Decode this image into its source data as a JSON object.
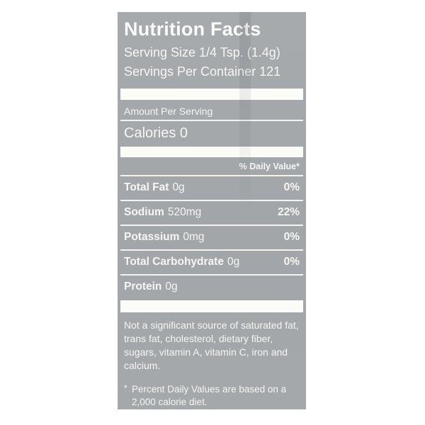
{
  "label": {
    "title": "Nutrition Facts",
    "serving_size": "Serving Size 1/4 Tsp. (1.4g)",
    "servings_per_container": "Servings Per Container 121",
    "amount_per_serving": "Amount Per Serving",
    "calories_line": "Calories 0",
    "daily_value_header": "% Daily Value*",
    "nutrients": [
      {
        "name": "Total Fat",
        "amount": "0g",
        "dv": "0%"
      },
      {
        "name": "Sodium",
        "amount": "520mg",
        "dv": "22%"
      },
      {
        "name": "Potassium",
        "amount": "0mg",
        "dv": "0%"
      },
      {
        "name": "Total Carbohydrate",
        "amount": "0g",
        "dv": "0%"
      },
      {
        "name": "Protein",
        "amount": "0g",
        "dv": ""
      }
    ],
    "disclaimer": "Not a significant source of saturated fat, trans fat, cholesterol, dietary fiber, sugars, vitamin A, vitamin C, iron and calcium.",
    "footnote_marker": "*",
    "footnote": "Percent Daily Values are based on a 2,000 calorie diet.",
    "colors": {
      "label_bg": "#a3a7aa",
      "text": "#f6f6f3",
      "bar": "#fbfbf8",
      "page_bg": "#ffffff"
    }
  }
}
